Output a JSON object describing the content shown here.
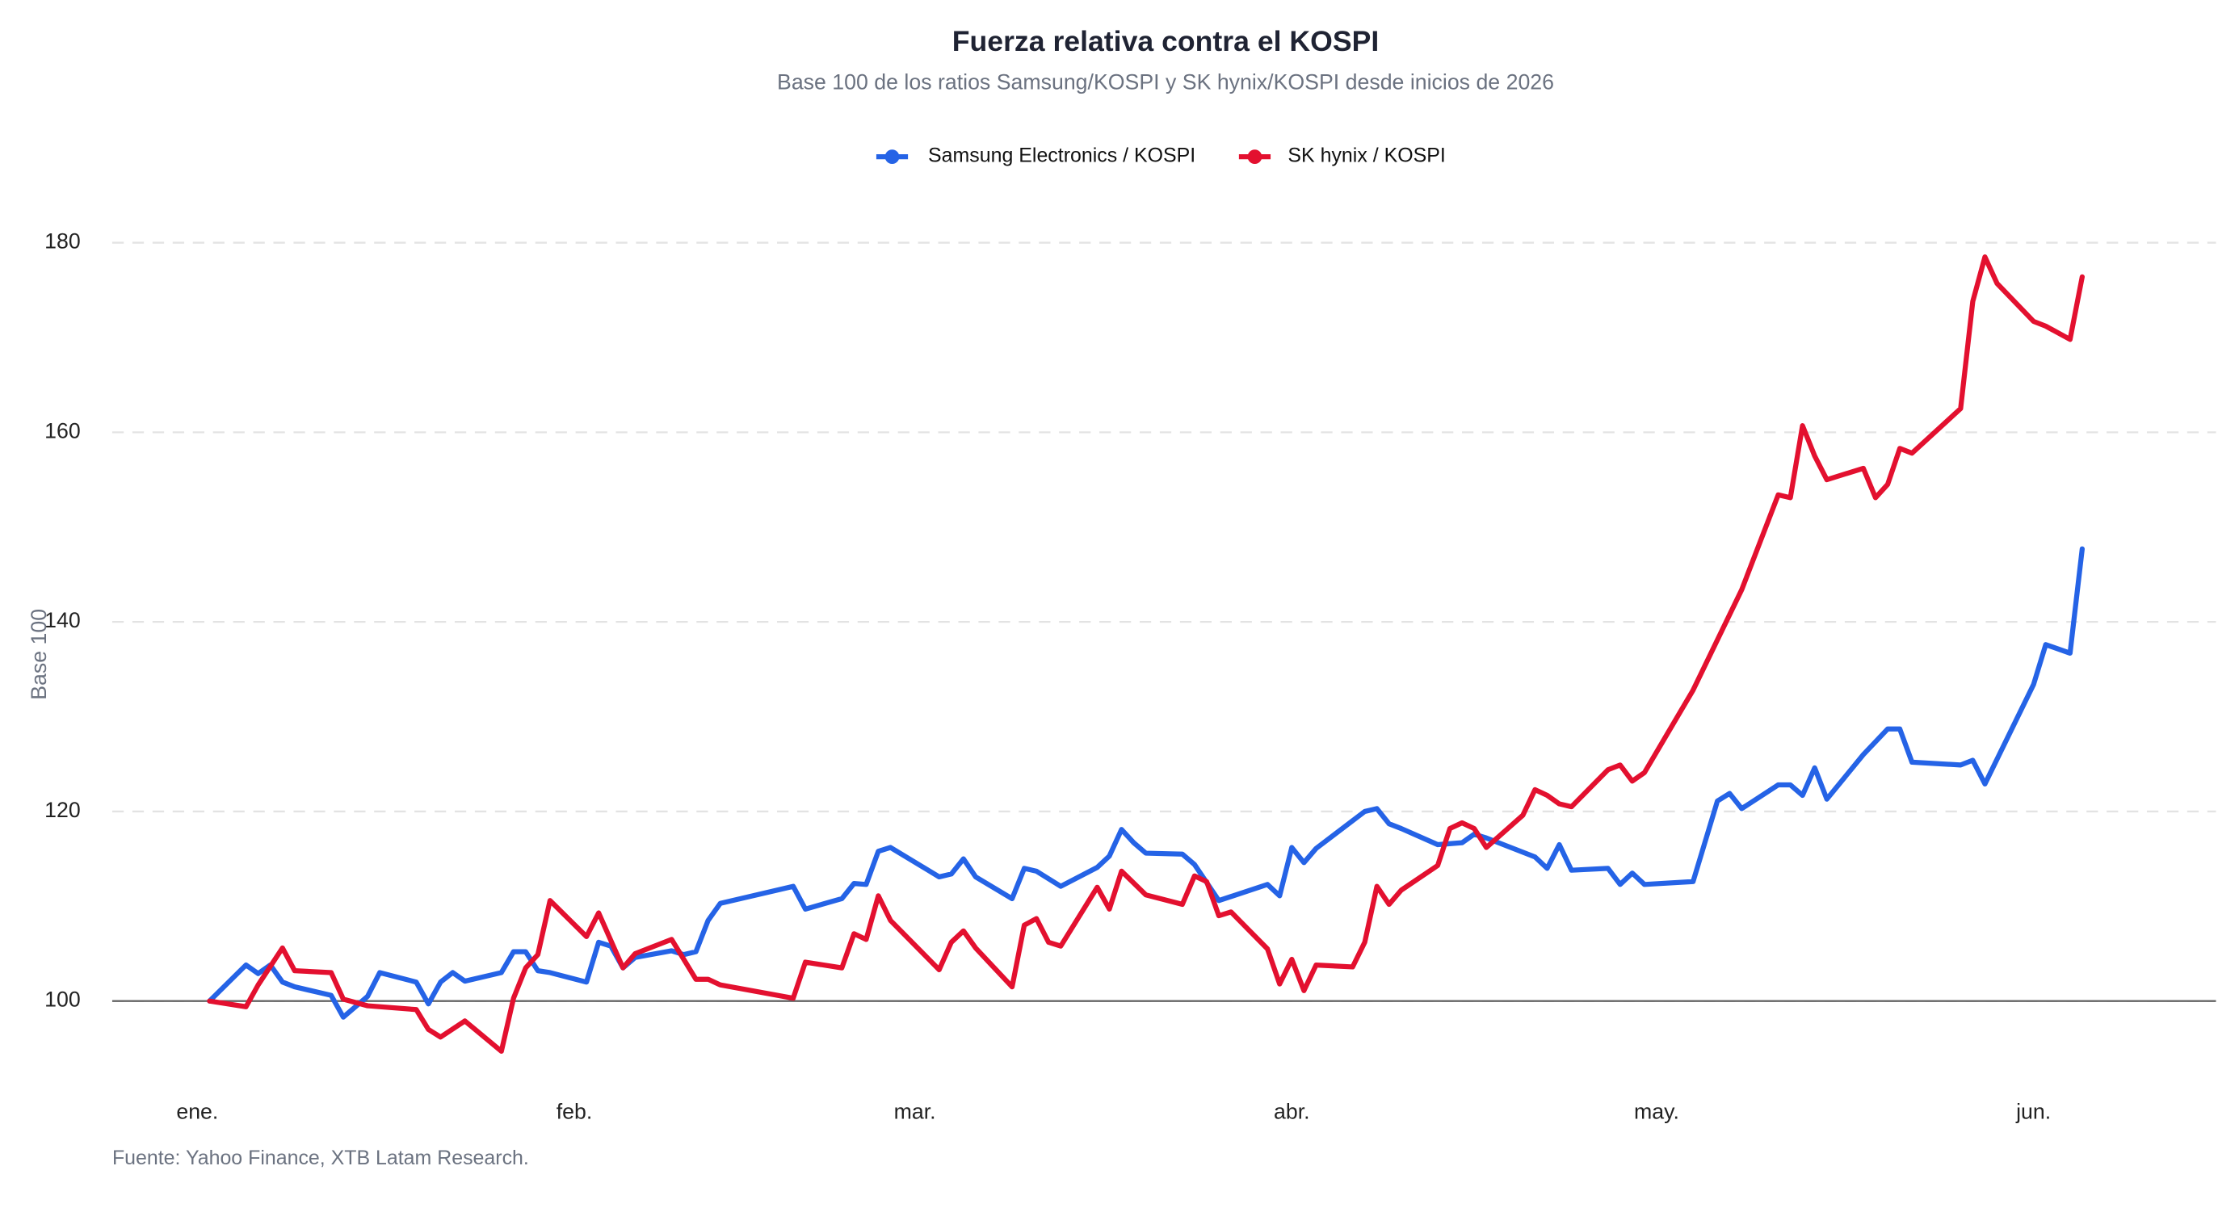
{
  "chart_data": {
    "type": "line",
    "title": "Fuerza relativa contra el KOSPI",
    "subtitle": "Base 100 de los ratios Samsung/KOSPI y SK hynix/KOSPI desde inicios de 2026",
    "y_label": "Base 100",
    "source": "Fuente: Yahoo Finance, XTB Latam Research.",
    "xlim": [
      -7,
      166
    ],
    "xticks": [
      {
        "value": 0,
        "label": "ene."
      },
      {
        "value": 31,
        "label": "feb."
      },
      {
        "value": 59,
        "label": "mar."
      },
      {
        "value": 90,
        "label": "abr."
      },
      {
        "value": 120,
        "label": "may."
      },
      {
        "value": 151,
        "label": "jun."
      }
    ],
    "ylim": [
      90,
      183
    ],
    "yticks": [
      100,
      120,
      140,
      160,
      180
    ],
    "grid": true,
    "baseline": 100,
    "legend": "top",
    "series": [
      {
        "name": "Samsung Electronics / KOSPI",
        "color": "#2563e6",
        "x": [
          1,
          4,
          5,
          6,
          7,
          8,
          11,
          12,
          14,
          15,
          18,
          19,
          20,
          21,
          22,
          25,
          26,
          27,
          28,
          29,
          32,
          33,
          34,
          35,
          36,
          39,
          40,
          41,
          42,
          43,
          49,
          50,
          53,
          54,
          55,
          56,
          57,
          61,
          62,
          63,
          64,
          67,
          68,
          69,
          71,
          74,
          75,
          76,
          77,
          78,
          81,
          82,
          84,
          88,
          89,
          90,
          91,
          92,
          96,
          97,
          98,
          99,
          102,
          104,
          105,
          106,
          110,
          111,
          112,
          113,
          116,
          117,
          118,
          119,
          123,
          125,
          126,
          127,
          130,
          131,
          132,
          133,
          134,
          137,
          139,
          140,
          141,
          145,
          146,
          147,
          151,
          152,
          154,
          155
        ],
        "values": [
          100,
          103.8,
          102.9,
          103.8,
          102,
          101.5,
          100.6,
          98.3,
          100.5,
          103,
          102,
          99.7,
          102,
          103,
          102.1,
          103,
          105.2,
          105.2,
          103.2,
          103,
          102,
          106.2,
          105.8,
          103.5,
          104.6,
          105.3,
          104.9,
          105.2,
          108.5,
          110.3,
          112.1,
          109.7,
          110.8,
          112.4,
          112.3,
          115.8,
          116.2,
          113.1,
          113.4,
          115,
          113.1,
          110.8,
          114,
          113.7,
          112.1,
          114.1,
          115.3,
          118.1,
          116.7,
          115.6,
          115.5,
          114.4,
          110.6,
          112.3,
          111.1,
          116.2,
          114.6,
          116.1,
          120,
          120.3,
          118.7,
          118.2,
          116.5,
          116.7,
          117.6,
          117.2,
          115.2,
          114,
          116.5,
          113.8,
          114,
          112.3,
          113.5,
          112.3,
          112.6,
          121.1,
          121.9,
          120.3,
          122.8,
          122.8,
          121.7,
          124.6,
          121.3,
          126,
          128.7,
          128.7,
          125.2,
          124.9,
          125.4,
          122.9,
          133.4,
          137.6,
          136.7,
          147.7
        ]
      },
      {
        "name": "SK hynix / KOSPI",
        "color": "#e3102f",
        "x": [
          1,
          4,
          5,
          7,
          8,
          11,
          12,
          14,
          18,
          19,
          20,
          22,
          25,
          26,
          27,
          28,
          29,
          32,
          33,
          35,
          36,
          39,
          41,
          42,
          43,
          49,
          50,
          53,
          54,
          55,
          56,
          57,
          61,
          62,
          63,
          64,
          67,
          68,
          69,
          70,
          71,
          74,
          75,
          76,
          78,
          81,
          82,
          83,
          84,
          85,
          88,
          89,
          90,
          91,
          92,
          95,
          96,
          97,
          98,
          99,
          102,
          103,
          104,
          105,
          106,
          109,
          110,
          111,
          112,
          113,
          116,
          117,
          118,
          119,
          123,
          127,
          130,
          131,
          132,
          133,
          134,
          137,
          138,
          139,
          140,
          141,
          145,
          146,
          147,
          148,
          151,
          152,
          154,
          155
        ],
        "values": [
          100,
          99.4,
          101.7,
          105.6,
          103.2,
          103,
          100.2,
          99.5,
          99.1,
          97,
          96.2,
          97.9,
          94.7,
          100.3,
          103.5,
          104.9,
          110.6,
          106.8,
          109.3,
          103.5,
          105,
          106.5,
          102.3,
          102.3,
          101.7,
          100.3,
          104.1,
          103.5,
          107.1,
          106.5,
          111.1,
          108.5,
          103.3,
          106.2,
          107.4,
          105.6,
          101.5,
          108,
          108.7,
          106.2,
          105.8,
          112,
          109.7,
          113.7,
          111.2,
          110.2,
          113.2,
          112.6,
          109,
          109.4,
          105.5,
          101.8,
          104.4,
          101.1,
          103.8,
          103.6,
          106.2,
          112.1,
          110.2,
          111.7,
          114.3,
          118.2,
          118.8,
          118.2,
          116.2,
          119.6,
          122.3,
          121.7,
          120.8,
          120.5,
          124.4,
          124.9,
          123.2,
          124.1,
          132.8,
          143.4,
          153.4,
          153.1,
          160.7,
          157.5,
          155,
          156.2,
          153.1,
          154.5,
          158.3,
          157.8,
          162.5,
          173.8,
          178.5,
          175.7,
          171.7,
          171.2,
          169.8,
          176.4
        ]
      }
    ]
  }
}
